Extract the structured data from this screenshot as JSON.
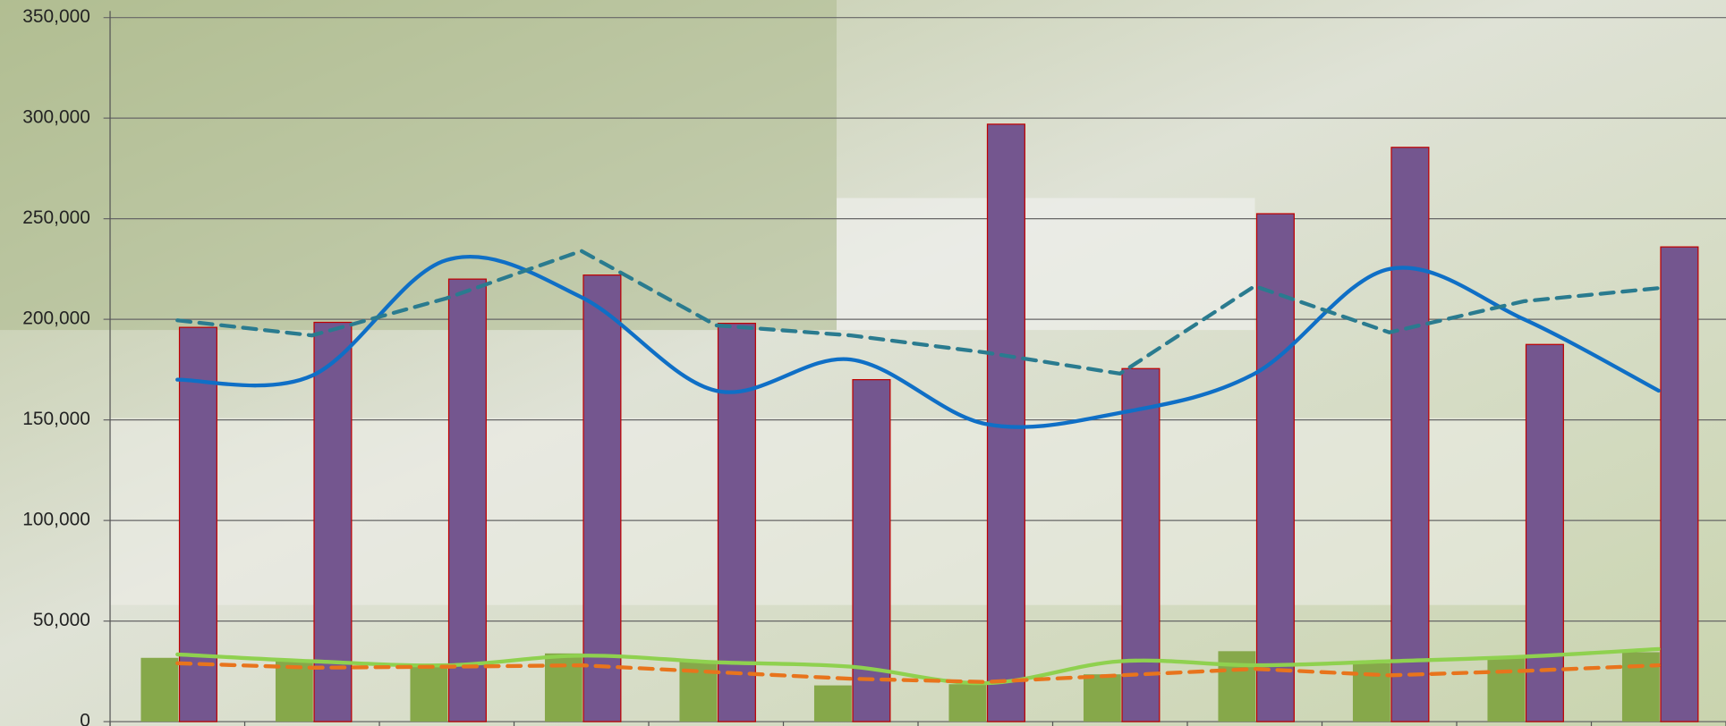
{
  "chart_data": {
    "type": "bar",
    "categories": [
      null,
      null,
      null,
      null,
      null,
      null,
      null,
      null,
      null,
      null,
      null,
      null
    ],
    "series": [
      {
        "type": "bar",
        "color": "#86a84a",
        "values": [
          31700,
          30600,
          28400,
          33900,
          30000,
          18000,
          18600,
          23500,
          35000,
          29000,
          31700,
          34500
        ]
      },
      {
        "type": "bar",
        "color": "#74568f",
        "values": [
          196000,
          198500,
          220000,
          222000,
          198000,
          170000,
          297000,
          175500,
          252500,
          285500,
          187500,
          236000
        ]
      },
      {
        "type": "line",
        "color": "#0f6fc6",
        "dashed": false,
        "values": [
          170000,
          172000,
          229500,
          211000,
          164500,
          180000,
          148000,
          153500,
          173000,
          225000,
          200000,
          164500
        ]
      },
      {
        "type": "line",
        "color": "#2a7b8f",
        "dashed": true,
        "values": [
          199500,
          192000,
          210500,
          234000,
          197000,
          192000,
          183500,
          173000,
          216500,
          193500,
          209000,
          215500
        ]
      },
      {
        "type": "line",
        "color": "#8fd14f",
        "dashed": false,
        "values": [
          33400,
          30000,
          28000,
          32800,
          29500,
          27300,
          19100,
          30000,
          28000,
          30000,
          32300,
          36100
        ]
      },
      {
        "type": "line",
        "color": "#e8741c",
        "dashed": true,
        "values": [
          29000,
          26800,
          27300,
          28000,
          24600,
          21300,
          19700,
          23000,
          26200,
          23000,
          25200,
          28000
        ]
      }
    ],
    "ylim": [
      0,
      350000
    ],
    "yticks": [
      0,
      {
        "value": 50000,
        "label": "50,000"
      },
      {
        "value": 100000,
        "label": "100,000"
      },
      {
        "value": 150000,
        "label": "150,000"
      },
      {
        "value": 200000,
        "label": "200,000"
      },
      {
        "value": 250000,
        "label": "250,000"
      },
      {
        "value": 300000,
        "label": "300,000"
      },
      {
        "value": 350000,
        "label": "350,000"
      }
    ],
    "grid": true
  }
}
